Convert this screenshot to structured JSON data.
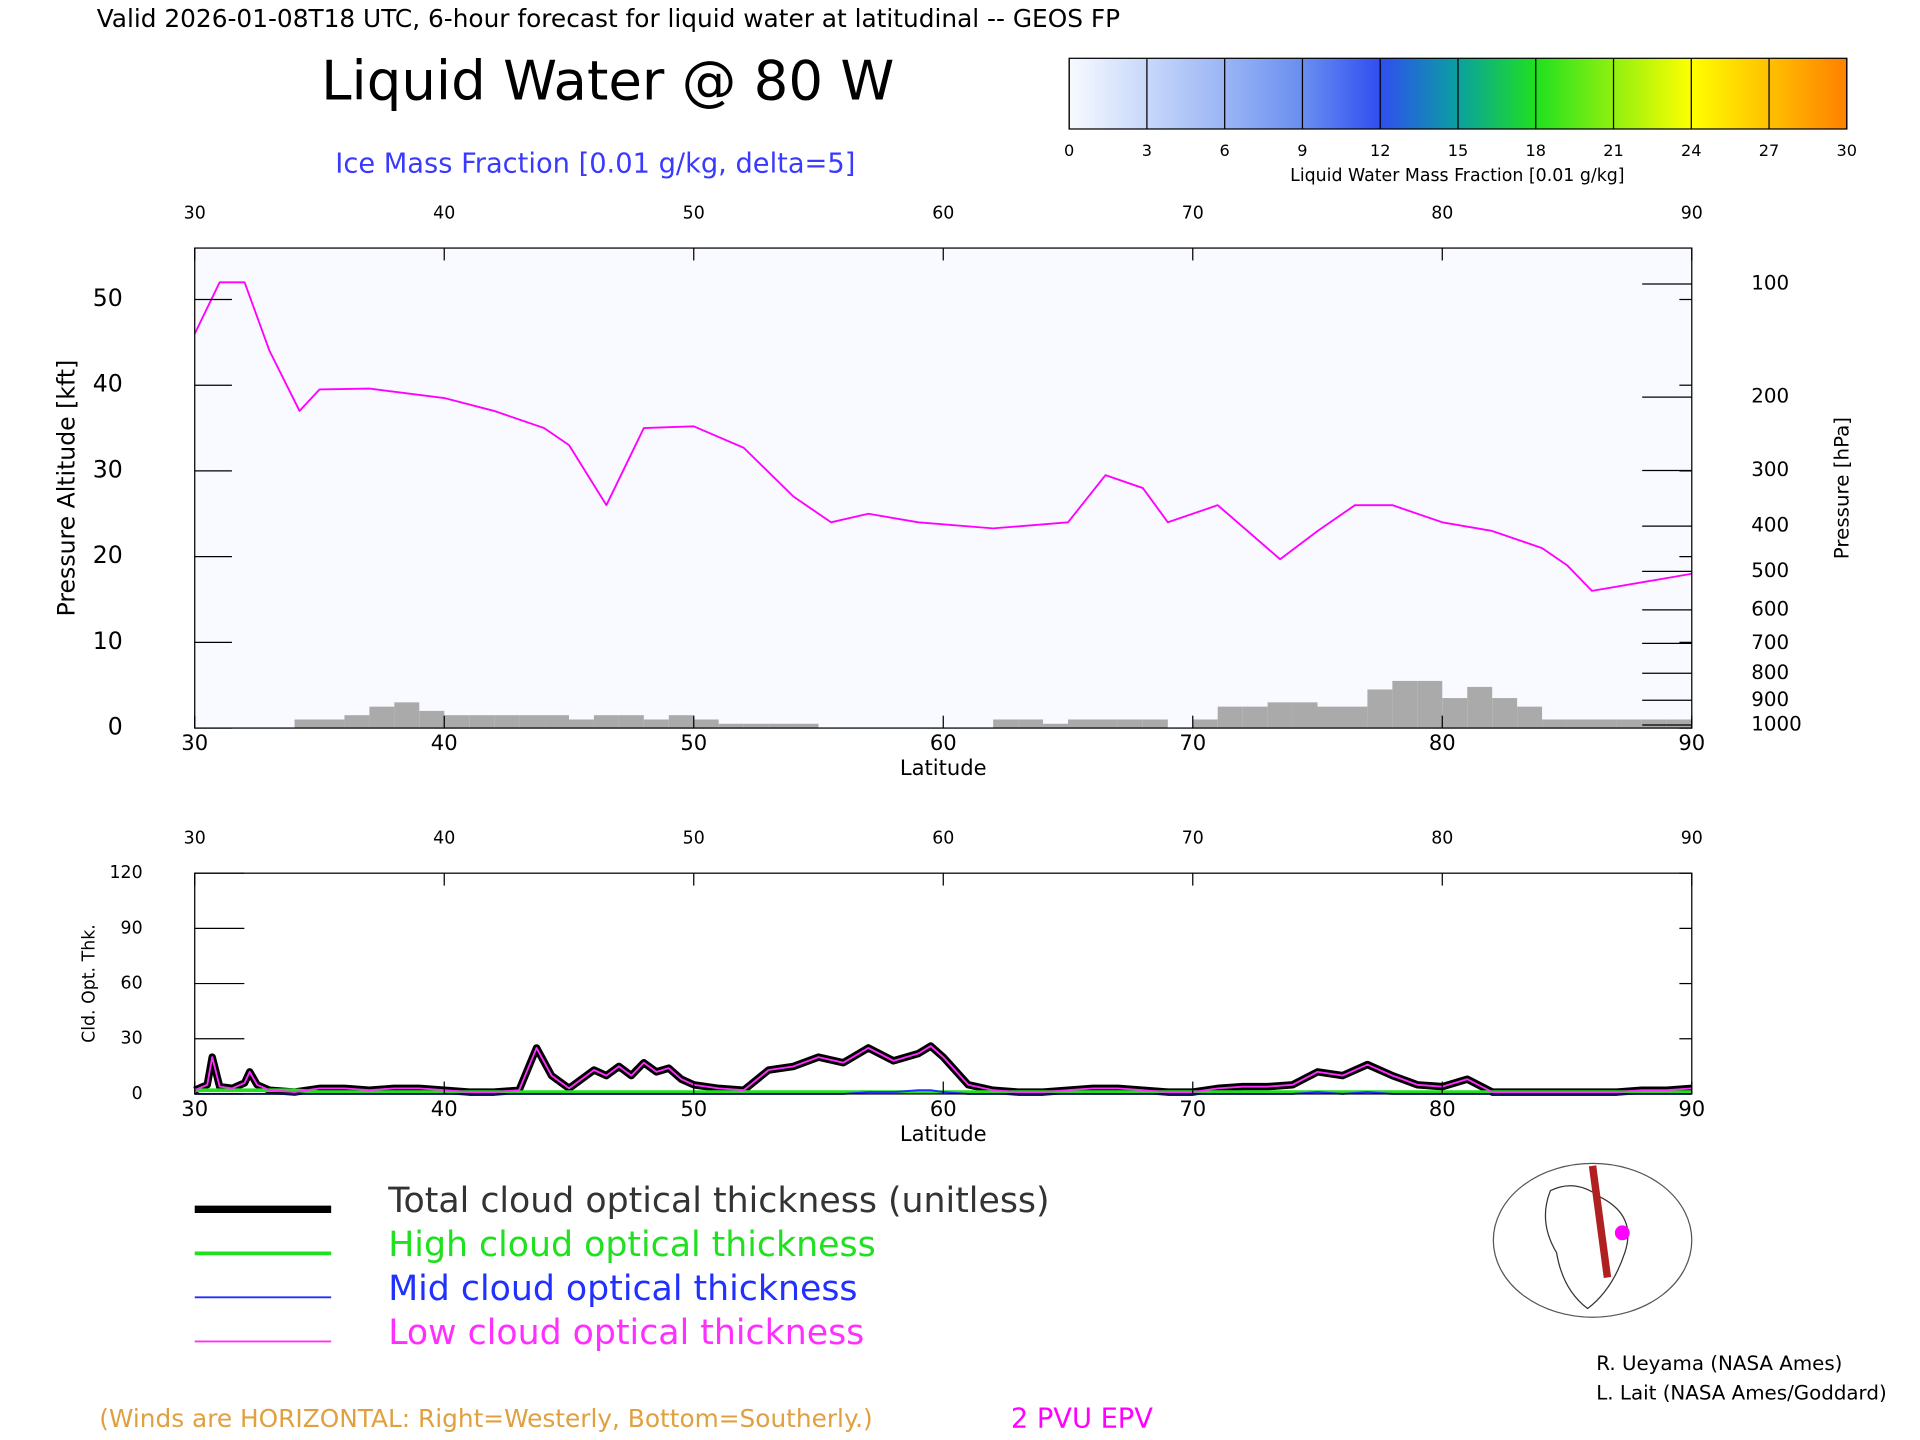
{
  "valid": "Valid 2026-01-08T18 UTC, 6-hour forecast for liquid water at latitudinal -- GEOS FP",
  "title": "Liquid Water @ 80 W",
  "subtitle": "Ice Mass Fraction [0.01 g/kg, delta=5]",
  "colorbar": {
    "label": "Liquid Water Mass Fraction [0.01 g/kg]",
    "ticks": [
      0,
      3,
      6,
      9,
      12,
      15,
      18,
      21,
      24,
      27,
      30
    ],
    "colors": [
      "#f8faff",
      "#c8d8fa",
      "#9ab5f5",
      "#6a8ef0",
      "#2f4ef0",
      "#0aa0a0",
      "#20e020",
      "#90f010",
      "#ffff00",
      "#ffc000",
      "#ff8000",
      "#ff2000"
    ]
  },
  "chart_data": [
    {
      "type": "cross-section",
      "xlabel": "Latitude",
      "ylabel": "Pressure Altitude [kft]",
      "y2label": "Pressure [hPa]",
      "xlim": [
        30,
        90
      ],
      "xticks": [
        30,
        40,
        50,
        60,
        70,
        80,
        90
      ],
      "ylim": [
        0,
        56
      ],
      "yticks": [
        0,
        10,
        20,
        30,
        40,
        50
      ],
      "y2scale": "pressure",
      "y2ticks": [
        100,
        200,
        300,
        400,
        500,
        600,
        700,
        800,
        900,
        1000
      ],
      "background": "#f8faff",
      "series": [
        {
          "name": "2 PVU EPV",
          "color": "#ff00ff",
          "x": [
            30,
            31,
            32,
            33,
            34.2,
            35,
            37,
            40,
            42,
            44,
            45,
            46.5,
            48,
            50,
            52,
            54,
            55.5,
            57,
            59,
            62,
            65,
            66.5,
            68,
            69,
            71,
            73.5,
            75,
            76.5,
            78,
            80,
            82,
            84,
            85,
            86,
            88,
            90
          ],
          "values": [
            46,
            52,
            52,
            44,
            37,
            39.5,
            39.6,
            38.5,
            37,
            35,
            33,
            26,
            35,
            35.2,
            32.7,
            27,
            24,
            25,
            24,
            23.3,
            24,
            29.5,
            28,
            24,
            26,
            19.7,
            23,
            26,
            26,
            24,
            23,
            21,
            19,
            16,
            17,
            18
          ]
        }
      ],
      "terrain": {
        "color": "#aaaaaa",
        "x": [
          30,
          31,
          32,
          33,
          34,
          35,
          36,
          37,
          38,
          39,
          40,
          41,
          42,
          43,
          44,
          45,
          46,
          47,
          48,
          49,
          50,
          51,
          52,
          53,
          54,
          55,
          56,
          57,
          58,
          59,
          60,
          61,
          62,
          63,
          64,
          65,
          66,
          67,
          68,
          69,
          70,
          71,
          72,
          73,
          74,
          75,
          76,
          77,
          78,
          79,
          80,
          81,
          82,
          83,
          84,
          85,
          86,
          87,
          88,
          89
        ],
        "values": [
          0,
          0,
          0,
          0,
          1,
          1,
          1.5,
          2.5,
          3,
          2,
          1.5,
          1.5,
          1.5,
          1.5,
          1.5,
          1,
          1.5,
          1.5,
          1,
          1.5,
          1,
          0.5,
          0.5,
          0.5,
          0.5,
          0,
          0,
          0,
          0,
          0,
          0,
          0,
          1,
          1,
          0.5,
          1,
          1,
          1,
          1,
          0,
          1,
          2.5,
          2.5,
          3,
          3,
          2.5,
          2.5,
          4.5,
          5.5,
          5.5,
          3.5,
          4.8,
          3.5,
          2.5,
          1,
          1,
          1,
          1,
          1,
          1
        ]
      }
    },
    {
      "type": "line",
      "xlabel": "Latitude",
      "ylabel": "Cld. Opt. Thk.",
      "xlim": [
        30,
        90
      ],
      "xticks": [
        30,
        40,
        50,
        60,
        70,
        80,
        90
      ],
      "ylim": [
        0,
        120
      ],
      "yticks": [
        0,
        30,
        60,
        90,
        120
      ],
      "x": [
        30,
        30.5,
        30.7,
        31,
        31.5,
        32,
        32.2,
        32.5,
        33,
        34,
        35,
        36,
        37,
        38,
        39,
        40,
        41,
        42,
        43,
        43.7,
        44.3,
        45,
        46,
        46.5,
        47,
        47.5,
        48,
        48.5,
        49,
        49.5,
        50,
        51,
        52,
        53,
        54,
        55,
        56,
        57,
        58,
        59,
        59.5,
        60,
        61,
        62,
        63,
        64,
        65,
        66,
        67,
        68,
        69,
        70,
        71,
        72,
        73,
        74,
        75,
        76,
        77,
        78,
        79,
        80,
        81,
        82,
        83,
        84,
        85,
        86,
        87,
        88,
        89,
        90
      ],
      "series": [
        {
          "name": "Total cloud optical thickness (unitless)",
          "color": "#000000",
          "width": 6,
          "values": [
            2,
            5,
            20,
            4,
            3,
            6,
            12,
            5,
            2,
            1,
            3,
            3,
            2,
            3,
            3,
            2,
            1,
            1,
            2,
            25,
            10,
            3,
            13,
            10,
            15,
            10,
            17,
            12,
            14,
            8,
            5,
            3,
            2,
            13,
            15,
            20,
            17,
            25,
            18,
            22,
            26,
            20,
            5,
            2,
            1,
            1,
            2,
            3,
            3,
            2,
            1,
            1,
            3,
            4,
            4,
            5,
            12,
            10,
            16,
            10,
            5,
            4,
            8,
            1,
            1,
            1,
            1,
            1,
            1,
            2,
            2,
            3
          ]
        },
        {
          "name": "High cloud optical thickness",
          "color": "#20e020",
          "width": 3,
          "values": [
            2,
            2,
            2,
            2,
            2,
            2,
            2,
            2,
            2,
            2,
            1,
            1,
            1,
            1,
            1,
            1,
            1,
            1,
            1,
            1,
            1,
            1,
            1,
            1,
            1,
            1,
            1,
            1,
            1,
            1,
            1,
            1,
            1,
            1,
            1,
            1,
            1,
            1,
            1,
            1,
            1,
            1,
            1,
            1,
            1,
            1,
            1,
            1,
            1,
            1,
            1,
            1,
            1,
            1,
            1,
            1,
            1,
            1,
            1,
            1,
            1,
            1,
            1,
            1,
            1,
            1,
            1,
            1,
            1,
            1,
            1,
            1
          ]
        },
        {
          "name": "Mid cloud optical thickness",
          "color": "#2030ff",
          "width": 1.5,
          "values": [
            0,
            0,
            0,
            0,
            0,
            0,
            0,
            0,
            0,
            0,
            0,
            0,
            0,
            0,
            0,
            0,
            0,
            0,
            0,
            0,
            0,
            0,
            0,
            0,
            0,
            0,
            0,
            0,
            0,
            0,
            0,
            0,
            0,
            0,
            0,
            0,
            0,
            1,
            1,
            2,
            2,
            1,
            0,
            0,
            0,
            0,
            0,
            0,
            0,
            0,
            0,
            0,
            0,
            0,
            0,
            0,
            1,
            0,
            1,
            0,
            0,
            0,
            0,
            0,
            0,
            0,
            0,
            0,
            0,
            0,
            0,
            0
          ]
        },
        {
          "name": "Low cloud optical thickness",
          "color": "#ff30ff",
          "width": 1.5,
          "values": [
            2,
            5,
            20,
            4,
            3,
            6,
            12,
            5,
            2,
            1,
            3,
            3,
            2,
            3,
            3,
            2,
            1,
            1,
            2,
            25,
            10,
            3,
            13,
            10,
            15,
            10,
            17,
            12,
            14,
            8,
            5,
            3,
            2,
            13,
            15,
            20,
            17,
            25,
            18,
            22,
            26,
            20,
            5,
            2,
            1,
            1,
            2,
            3,
            3,
            2,
            1,
            1,
            3,
            4,
            4,
            5,
            12,
            10,
            16,
            10,
            5,
            4,
            8,
            1,
            1,
            1,
            1,
            1,
            1,
            2,
            2,
            3
          ]
        }
      ]
    }
  ],
  "credits": [
    "R. Ueyama (NASA Ames)",
    "L. Lait (NASA Ames/Goddard)"
  ],
  "wind_note": "(Winds are HORIZONTAL: Right=Westerly, Bottom=Southerly.)"
}
